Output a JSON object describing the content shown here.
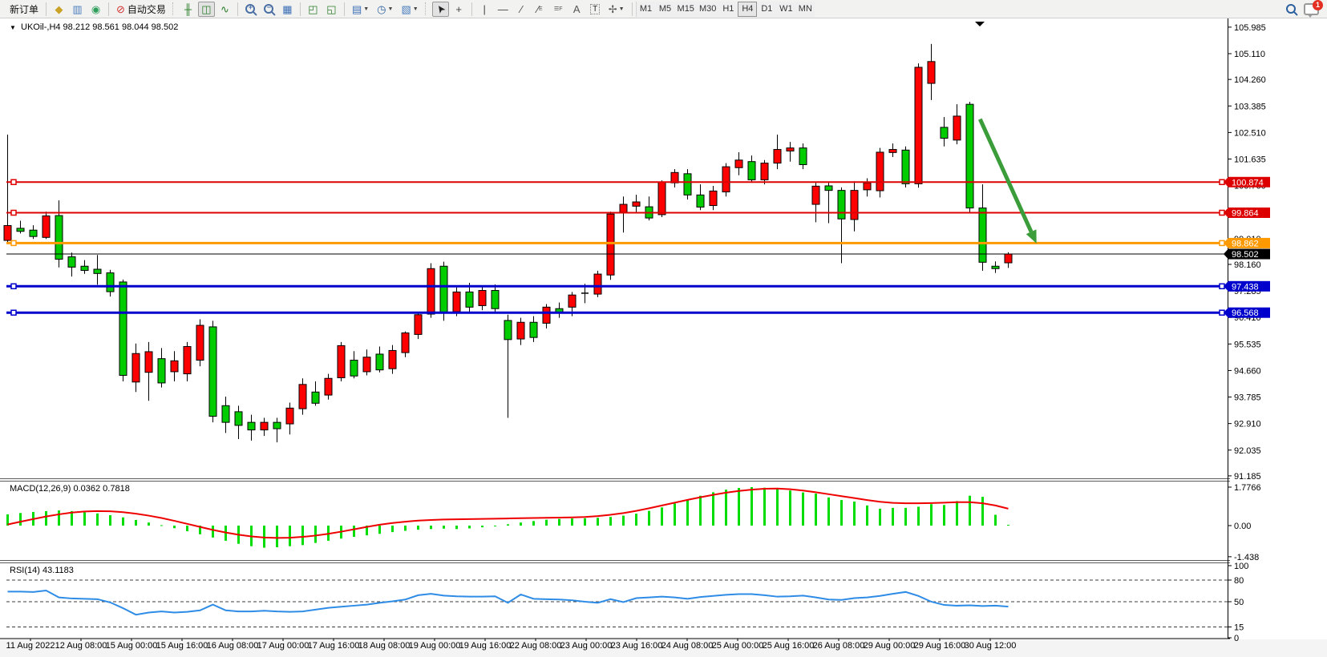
{
  "toolbar": {
    "new_order_label": "新订单",
    "autotrading_label": "自动交易",
    "timeframes": [
      "M1",
      "M5",
      "M15",
      "M30",
      "H1",
      "H4",
      "D1",
      "W1",
      "MN"
    ],
    "active_timeframe": "H4",
    "notification_count": "1",
    "icons": [
      "gem-icon",
      "terminal-icon",
      "signals-icon",
      "autotrading-icon",
      "bar-chart-icon",
      "candle-chart-icon",
      "line-chart-icon",
      "zoom-in-icon",
      "zoom-out-icon",
      "tile-windows-icon",
      "indicator-window-icon",
      "indicator-list-icon",
      "new-chart-icon",
      "period-clock-icon",
      "template-icon",
      "cursor-icon",
      "crosshair-icon",
      "vertical-line-icon",
      "horizontal-line-icon",
      "trendline-icon",
      "channel-icon",
      "fibonacci-icon",
      "text-icon",
      "text-label-icon",
      "arrows-icon",
      "search-icon",
      "chat-icon"
    ]
  },
  "chart": {
    "header": "UKOil-,H4  98.212 98.561 98.044 98.502",
    "symbol": "UKOil-",
    "timeframe": "H4",
    "open": "98.212",
    "high": "98.561",
    "low": "98.044",
    "close": "98.502"
  },
  "indicators": {
    "macd": {
      "label": "MACD(12,26,9) 0.0362 0.7818",
      "scale": [
        "1.7766",
        "0.00",
        "-1.438"
      ]
    },
    "rsi": {
      "label": "RSI(14) 43.1183",
      "scale": [
        "100",
        "80",
        "50",
        "15",
        "0"
      ],
      "levels": [
        80,
        50,
        15
      ]
    }
  },
  "price_axis": {
    "labels": [
      105.985,
      105.11,
      104.26,
      103.385,
      102.51,
      101.635,
      100.76,
      99.885,
      99.01,
      98.16,
      97.285,
      96.41,
      95.535,
      94.66,
      93.785,
      92.91,
      92.035,
      91.185
    ],
    "tags": [
      {
        "text": "100.874",
        "bg": "#dd0000",
        "price": 100.874
      },
      {
        "text": "99.864",
        "bg": "#dd0000",
        "price": 99.864
      },
      {
        "text": "98.862",
        "bg": "#ff9900",
        "price": 98.862
      },
      {
        "text": "98.502",
        "bg": "#000000",
        "price": 98.502
      },
      {
        "text": "97.438",
        "bg": "#0000cc",
        "price": 97.438
      },
      {
        "text": "96.568",
        "bg": "#0000cc",
        "price": 96.568
      }
    ]
  },
  "time_axis": {
    "labels": [
      "11 Aug 2022",
      "12 Aug 08:00",
      "15 Aug 00:00",
      "15 Aug 16:00",
      "16 Aug 08:00",
      "17 Aug 00:00",
      "17 Aug 16:00",
      "18 Aug 08:00",
      "19 Aug 00:00",
      "19 Aug 16:00",
      "22 Aug 08:00",
      "23 Aug 00:00",
      "23 Aug 16:00",
      "24 Aug 08:00",
      "25 Aug 00:00",
      "25 Aug 16:00",
      "26 Aug 08:00",
      "29 Aug 00:00",
      "29 Aug 16:00",
      "30 Aug 12:00"
    ]
  },
  "chart_data": [
    {
      "type": "candlestick",
      "title": "UKOil- H4",
      "ylim": [
        91.13,
        106.14
      ],
      "up_color": "#ff0000",
      "down_color": "#00cc00",
      "candles": [
        [
          98.95,
          102.44,
          98.88,
          99.44
        ],
        [
          99.35,
          99.6,
          99.18,
          99.25
        ],
        [
          99.29,
          99.45,
          99.0,
          99.08
        ],
        [
          99.05,
          99.9,
          99.0,
          99.76
        ],
        [
          99.77,
          100.27,
          98.06,
          98.33
        ],
        [
          98.41,
          98.55,
          97.76,
          98.07
        ],
        [
          98.1,
          98.3,
          97.85,
          97.96
        ],
        [
          98.0,
          98.47,
          97.49,
          97.86
        ],
        [
          97.88,
          97.98,
          97.1,
          97.26
        ],
        [
          97.58,
          97.66,
          94.3,
          94.5
        ],
        [
          94.28,
          95.55,
          93.95,
          95.22
        ],
        [
          94.6,
          95.6,
          93.66,
          95.28
        ],
        [
          95.05,
          95.4,
          94.1,
          94.25
        ],
        [
          94.62,
          95.3,
          94.3,
          94.98
        ],
        [
          94.55,
          95.6,
          94.3,
          95.45
        ],
        [
          95.0,
          96.35,
          94.8,
          96.15
        ],
        [
          96.1,
          96.3,
          92.95,
          93.15
        ],
        [
          93.5,
          93.8,
          92.6,
          92.95
        ],
        [
          93.3,
          93.5,
          92.4,
          92.85
        ],
        [
          92.95,
          93.2,
          92.35,
          92.7
        ],
        [
          92.7,
          93.1,
          92.5,
          92.95
        ],
        [
          92.95,
          93.1,
          92.29,
          92.74
        ],
        [
          92.9,
          93.6,
          92.55,
          93.42
        ],
        [
          93.4,
          94.4,
          93.2,
          94.2
        ],
        [
          93.95,
          94.3,
          93.5,
          93.58
        ],
        [
          93.85,
          94.55,
          93.7,
          94.4
        ],
        [
          94.42,
          95.6,
          94.3,
          95.48
        ],
        [
          95.0,
          95.3,
          94.4,
          94.48
        ],
        [
          94.62,
          95.35,
          94.5,
          95.1
        ],
        [
          95.2,
          95.45,
          94.6,
          94.68
        ],
        [
          94.72,
          95.5,
          94.55,
          95.32
        ],
        [
          95.25,
          95.95,
          95.1,
          95.9
        ],
        [
          95.85,
          96.6,
          95.7,
          96.5
        ],
        [
          96.52,
          98.2,
          96.4,
          98.02
        ],
        [
          98.1,
          98.25,
          96.3,
          96.55
        ],
        [
          96.6,
          97.4,
          96.45,
          97.25
        ],
        [
          97.25,
          97.55,
          96.6,
          96.75
        ],
        [
          96.8,
          97.45,
          96.65,
          97.3
        ],
        [
          97.3,
          97.5,
          96.55,
          96.7
        ],
        [
          96.31,
          96.5,
          93.1,
          95.68
        ],
        [
          95.7,
          96.4,
          95.5,
          96.25
        ],
        [
          96.25,
          96.45,
          95.6,
          95.75
        ],
        [
          96.22,
          96.85,
          96.05,
          96.75
        ],
        [
          96.7,
          96.9,
          96.4,
          96.55
        ],
        [
          96.75,
          97.25,
          96.45,
          97.15
        ],
        [
          97.2,
          97.52,
          96.88,
          97.21
        ],
        [
          97.18,
          97.95,
          97.08,
          97.84
        ],
        [
          97.81,
          99.9,
          97.65,
          99.82
        ],
        [
          99.88,
          100.4,
          99.21,
          100.14
        ],
        [
          100.08,
          100.46,
          99.88,
          100.22
        ],
        [
          100.06,
          100.4,
          99.61,
          99.69
        ],
        [
          99.8,
          100.93,
          99.72,
          100.88
        ],
        [
          100.85,
          101.3,
          100.7,
          101.19
        ],
        [
          101.15,
          101.3,
          100.3,
          100.45
        ],
        [
          100.45,
          100.8,
          99.95,
          100.05
        ],
        [
          100.1,
          100.75,
          99.95,
          100.58
        ],
        [
          100.55,
          101.5,
          100.4,
          101.38
        ],
        [
          101.35,
          101.86,
          101.1,
          101.6
        ],
        [
          101.55,
          101.75,
          100.85,
          100.95
        ],
        [
          100.95,
          101.6,
          100.8,
          101.5
        ],
        [
          101.5,
          102.44,
          101.3,
          101.95
        ],
        [
          101.9,
          102.2,
          101.55,
          102.0
        ],
        [
          102.0,
          102.15,
          101.3,
          101.45
        ],
        [
          100.14,
          100.85,
          99.55,
          100.74
        ],
        [
          100.75,
          100.85,
          99.52,
          100.6
        ],
        [
          100.6,
          100.7,
          98.2,
          99.66
        ],
        [
          99.64,
          100.9,
          99.25,
          100.6
        ],
        [
          100.62,
          101.0,
          100.4,
          100.85
        ],
        [
          100.59,
          102.0,
          100.37,
          101.86
        ],
        [
          101.85,
          102.15,
          101.7,
          101.95
        ],
        [
          101.93,
          102.05,
          100.7,
          100.82
        ],
        [
          100.82,
          104.79,
          100.69,
          104.66
        ],
        [
          104.13,
          105.43,
          103.58,
          104.85
        ],
        [
          102.68,
          103.02,
          102.05,
          102.32
        ],
        [
          102.26,
          103.44,
          102.12,
          103.05
        ],
        [
          103.44,
          103.52,
          99.88,
          100.02
        ],
        [
          100.02,
          100.8,
          97.95,
          98.23
        ],
        [
          98.1,
          98.26,
          97.88,
          98.02
        ],
        [
          98.212,
          98.561,
          98.044,
          98.502
        ]
      ],
      "hlines": [
        {
          "price": 100.874,
          "color": "#dd0000",
          "width": 2
        },
        {
          "price": 99.864,
          "color": "#dd0000",
          "width": 2
        },
        {
          "price": 98.862,
          "color": "#ff9900",
          "width": 3
        },
        {
          "price": 97.438,
          "color": "#0000cc",
          "width": 3
        },
        {
          "price": 96.568,
          "color": "#0000cc",
          "width": 3
        }
      ],
      "last_price_line": {
        "price": 98.502,
        "color": "#000000",
        "width": 1
      },
      "arrow_annotation": {
        "color": "#3a9d3a",
        "from_index": 75.8,
        "from_price": 102.95,
        "to_index": 80.2,
        "to_price": 98.85
      }
    },
    {
      "type": "bar",
      "name": "MACD(12,26,9)",
      "ylim": [
        -1.554,
        2.035
      ],
      "hist_color": "#00dd00",
      "signal_color": "#ee0000",
      "histogram": [
        0.52,
        0.58,
        0.63,
        0.67,
        0.7,
        0.67,
        0.62,
        0.56,
        0.48,
        0.38,
        0.26,
        0.14,
        0.02,
        -0.12,
        -0.26,
        -0.4,
        -0.55,
        -0.7,
        -0.84,
        -0.95,
        -1.02,
        -1.0,
        -0.95,
        -0.9,
        -0.8,
        -0.7,
        -0.6,
        -0.52,
        -0.45,
        -0.38,
        -0.3,
        -0.24,
        -0.19,
        -0.16,
        -0.14,
        -0.16,
        -0.13,
        -0.08,
        -0.02,
        0.06,
        0.14,
        0.21,
        0.27,
        0.31,
        0.33,
        0.34,
        0.36,
        0.4,
        0.46,
        0.55,
        0.68,
        0.84,
        1.02,
        1.2,
        1.38,
        1.54,
        1.66,
        1.74,
        1.7766,
        1.75,
        1.7,
        1.62,
        1.53,
        1.48,
        1.3,
        1.18,
        1.11,
        0.93,
        0.78,
        0.82,
        0.82,
        0.87,
        0.99,
        0.95,
        1.13,
        1.38,
        1.33,
        0.5,
        0.0362
      ],
      "signal": [
        0.05,
        0.18,
        0.3,
        0.42,
        0.52,
        0.6,
        0.65,
        0.67,
        0.66,
        0.62,
        0.55,
        0.46,
        0.35,
        0.22,
        0.08,
        -0.06,
        -0.2,
        -0.32,
        -0.42,
        -0.5,
        -0.55,
        -0.57,
        -0.56,
        -0.52,
        -0.46,
        -0.38,
        -0.28,
        -0.17,
        -0.06,
        0.04,
        0.12,
        0.18,
        0.23,
        0.26,
        0.28,
        0.29,
        0.3,
        0.31,
        0.32,
        0.33,
        0.34,
        0.35,
        0.36,
        0.37,
        0.38,
        0.4,
        0.44,
        0.5,
        0.58,
        0.68,
        0.8,
        0.93,
        1.06,
        1.19,
        1.31,
        1.42,
        1.52,
        1.6,
        1.66,
        1.7,
        1.71,
        1.68,
        1.62,
        1.54,
        1.45,
        1.36,
        1.27,
        1.18,
        1.1,
        1.05,
        1.03,
        1.03,
        1.04,
        1.06,
        1.08,
        1.08,
        1.03,
        0.93,
        0.7818
      ]
    },
    {
      "type": "line",
      "name": "RSI(14)",
      "ylim": [
        0,
        103.3
      ],
      "line_color": "#2e8ce6",
      "values": [
        64,
        64,
        63.5,
        65.5,
        56,
        54.5,
        54,
        53.5,
        49,
        41,
        32,
        35,
        36.5,
        35,
        36,
        38,
        46,
        38,
        36.5,
        36.5,
        37.5,
        36.5,
        36,
        36.5,
        39,
        41.5,
        43,
        44.5,
        46,
        48.5,
        50.5,
        53,
        59,
        61,
        58.5,
        57.5,
        57,
        57,
        57.5,
        48.5,
        60,
        54,
        53.5,
        53,
        52,
        50,
        48.5,
        53.5,
        49.5,
        55,
        56,
        57,
        56,
        54,
        56.5,
        58,
        59.5,
        60.5,
        60.5,
        59,
        57,
        57.5,
        58.5,
        56,
        53,
        52.5,
        55,
        56,
        58,
        61,
        63.5,
        58,
        50,
        45.5,
        44.5,
        45,
        44,
        44.5,
        43.12
      ]
    }
  ]
}
